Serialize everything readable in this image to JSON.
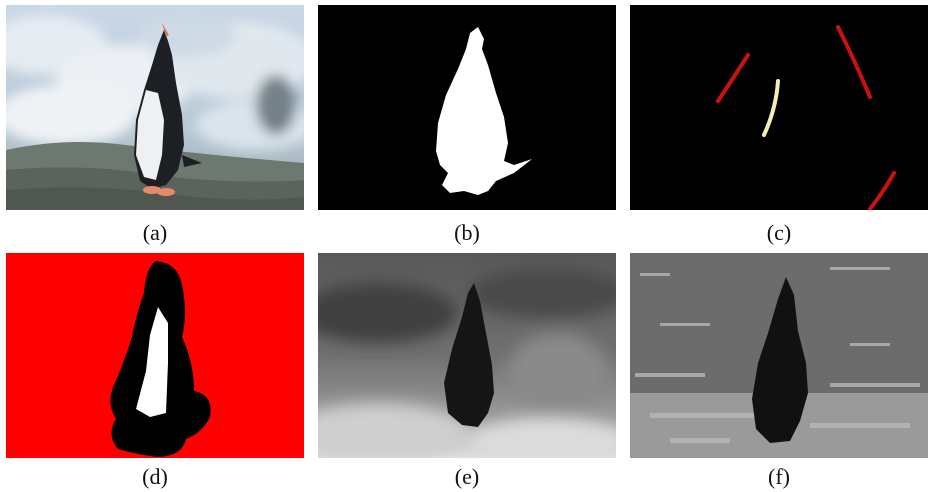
{
  "figure": {
    "panels": [
      {
        "id": "a",
        "caption": "(a)",
        "content": "original penguin photo"
      },
      {
        "id": "b",
        "caption": "(b)",
        "content": "binary foreground mask"
      },
      {
        "id": "c",
        "caption": "(c)",
        "content": "user scribbles"
      },
      {
        "id": "d",
        "caption": "(d)",
        "content": "trimap"
      },
      {
        "id": "e",
        "caption": "(e)",
        "content": "grayscale map"
      },
      {
        "id": "f",
        "caption": "(f)",
        "content": "result map"
      }
    ],
    "colors": {
      "mask_bg": "#000000",
      "mask_fg": "#ffffff",
      "scribble_red": "#cc1111",
      "scribble_yellow": "#f3efb0",
      "trimap_red": "#ff0000"
    }
  }
}
